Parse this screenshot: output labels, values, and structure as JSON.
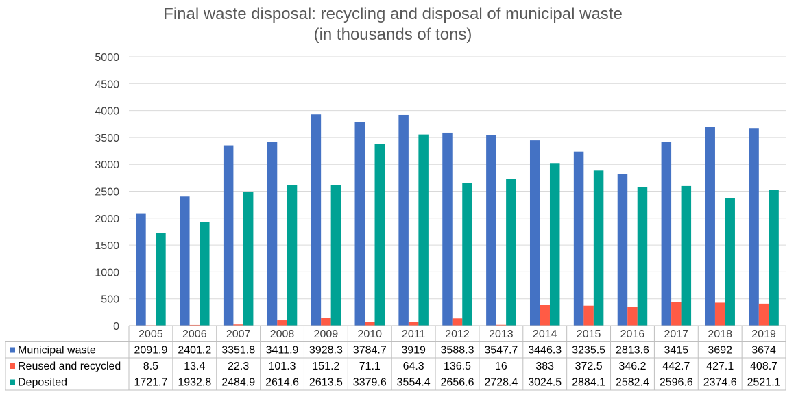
{
  "chart_data": {
    "type": "bar",
    "title": "Final waste disposal: recycling and disposal of municipal waste",
    "subtitle": "(in thousands of tons)",
    "categories": [
      "2005",
      "2006",
      "2007",
      "2008",
      "2009",
      "2010",
      "2011",
      "2012",
      "2013",
      "2014",
      "2015",
      "2016",
      "2017",
      "2018",
      "2019"
    ],
    "series": [
      {
        "name": "Municipal waste",
        "color": "#4472C4",
        "values": [
          2091.9,
          2401.2,
          3351.8,
          3411.9,
          3928.3,
          3784.7,
          3919,
          3588.3,
          3547.7,
          3446.3,
          3235.5,
          2813.6,
          3415,
          3692,
          3674
        ]
      },
      {
        "name": "Reused and recycled",
        "color": "#FF5B45",
        "values": [
          8.5,
          13.4,
          22.3,
          101.3,
          151.2,
          71.1,
          64.3,
          136.5,
          16,
          383,
          372.5,
          346.2,
          442.7,
          427.1,
          408.7
        ]
      },
      {
        "name": "Deposited",
        "color": "#00A294",
        "values": [
          1721.7,
          1932.8,
          2484.9,
          2614.6,
          2613.5,
          3379.6,
          3554.4,
          2656.6,
          2728.4,
          3024.5,
          2884.1,
          2582.4,
          2596.6,
          2374.6,
          2521.1
        ]
      }
    ],
    "ylim": [
      0,
      5000
    ],
    "yticks": [
      0,
      500,
      1000,
      1500,
      2000,
      2500,
      3000,
      3500,
      4000,
      4500,
      5000
    ],
    "grid": true,
    "legend": "data-table"
  }
}
